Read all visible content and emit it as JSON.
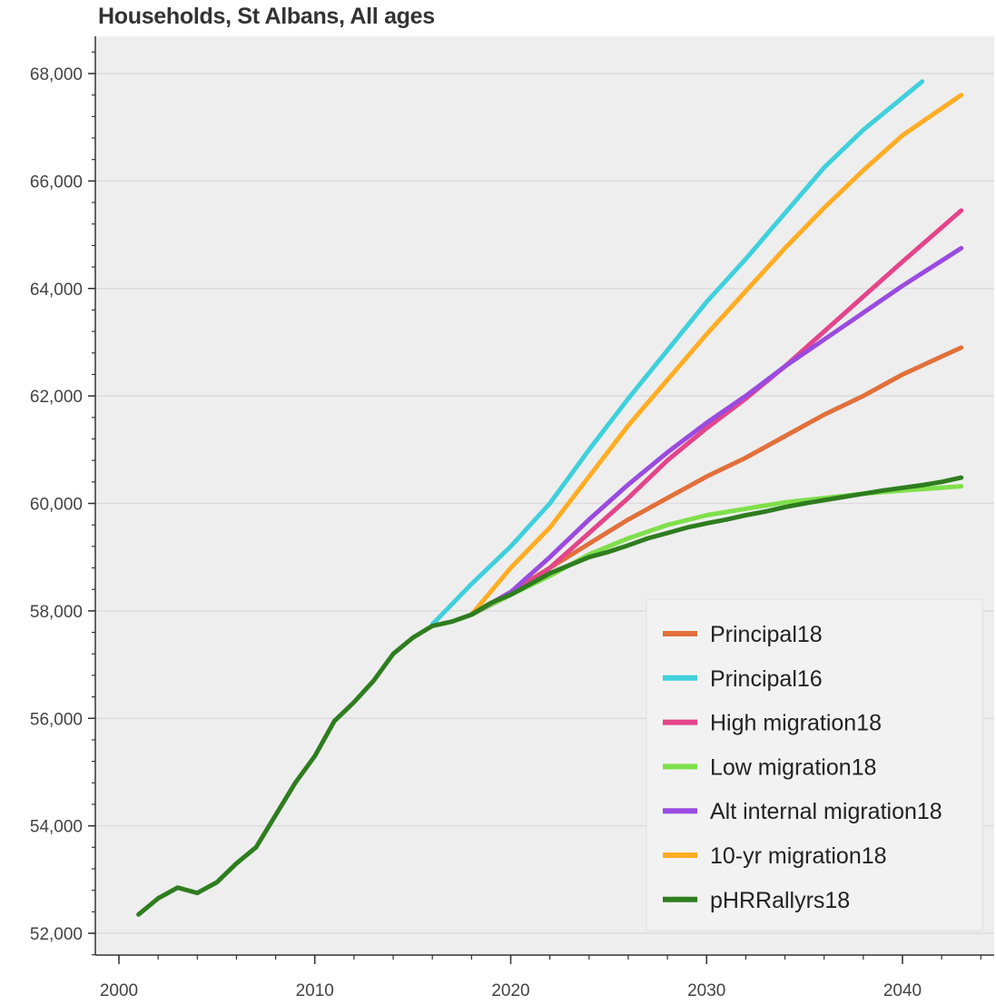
{
  "chart_data": {
    "type": "line",
    "title": "Households, St Albans, All ages",
    "xlabel": "",
    "ylabel": "",
    "xlim": [
      1999,
      2045
    ],
    "ylim": [
      51700,
      68600
    ],
    "x_ticks": [
      2000,
      2010,
      2020,
      2030,
      2040
    ],
    "x_tick_labels": [
      "2000",
      "2010",
      "2020",
      "2030",
      "2040"
    ],
    "y_ticks": [
      52000,
      54000,
      56000,
      58000,
      60000,
      62000,
      64000,
      66000,
      68000
    ],
    "y_tick_labels": [
      "52,000",
      "54,000",
      "56,000",
      "58,000",
      "60,000",
      "62,000",
      "64,000",
      "66,000",
      "68,000"
    ],
    "grid": "horizontal",
    "legend_position": "bottom-right",
    "series": [
      {
        "name": "Principal18",
        "color": "#e2703a",
        "x": [
          2018,
          2020,
          2022,
          2024,
          2026,
          2028,
          2030,
          2032,
          2034,
          2036,
          2038,
          2040,
          2043
        ],
        "y": [
          57930,
          58350,
          58800,
          59250,
          59700,
          60100,
          60500,
          60850,
          61250,
          61650,
          62000,
          62400,
          62900
        ]
      },
      {
        "name": "Principal16",
        "color": "#3fd0dc",
        "x": [
          2016,
          2018,
          2020,
          2022,
          2024,
          2026,
          2028,
          2030,
          2032,
          2034,
          2036,
          2038,
          2041
        ],
        "y": [
          57750,
          58500,
          59200,
          60000,
          61000,
          61950,
          62850,
          63750,
          64550,
          65400,
          66250,
          66950,
          67850
        ]
      },
      {
        "name": "High migration18",
        "color": "#e4458a",
        "x": [
          2018,
          2020,
          2022,
          2024,
          2026,
          2028,
          2030,
          2032,
          2034,
          2036,
          2038,
          2040,
          2043
        ],
        "y": [
          57930,
          58300,
          58800,
          59450,
          60100,
          60800,
          61400,
          61950,
          62550,
          63200,
          63850,
          64500,
          65450
        ]
      },
      {
        "name": "Low migration18",
        "color": "#7fe04a",
        "x": [
          2018,
          2020,
          2022,
          2024,
          2026,
          2028,
          2030,
          2032,
          2034,
          2036,
          2038,
          2040,
          2043
        ],
        "y": [
          57930,
          58300,
          58650,
          59050,
          59350,
          59600,
          59780,
          59900,
          60020,
          60100,
          60180,
          60240,
          60320
        ]
      },
      {
        "name": "Alt internal migration18",
        "color": "#9a4be0",
        "x": [
          2018,
          2020,
          2022,
          2024,
          2026,
          2028,
          2030,
          2032,
          2034,
          2036,
          2038,
          2040,
          2043
        ],
        "y": [
          57930,
          58350,
          59000,
          59700,
          60350,
          60950,
          61500,
          62000,
          62550,
          63050,
          63550,
          64050,
          64750
        ]
      },
      {
        "name": "10-yr migration18",
        "color": "#ffad23",
        "x": [
          2018,
          2020,
          2022,
          2024,
          2026,
          2028,
          2030,
          2032,
          2034,
          2036,
          2038,
          2040,
          2043
        ],
        "y": [
          57930,
          58800,
          59550,
          60500,
          61450,
          62300,
          63150,
          63950,
          64750,
          65500,
          66200,
          66850,
          67600
        ]
      },
      {
        "name": "pHRRallyrs18",
        "color": "#2e7d1f",
        "x": [
          2001,
          2002,
          2003,
          2004,
          2005,
          2006,
          2007,
          2008,
          2009,
          2010,
          2011,
          2012,
          2013,
          2014,
          2015,
          2016,
          2017,
          2018,
          2019,
          2020,
          2021,
          2022,
          2023,
          2024,
          2025,
          2026,
          2027,
          2028,
          2029,
          2030,
          2031,
          2032,
          2033,
          2034,
          2035,
          2036,
          2037,
          2038,
          2039,
          2040,
          2041,
          2042,
          2043
        ],
        "y": [
          52350,
          52650,
          52850,
          52750,
          52950,
          53300,
          53600,
          54200,
          54800,
          55300,
          55950,
          56300,
          56700,
          57200,
          57500,
          57720,
          57800,
          57930,
          58150,
          58300,
          58500,
          58700,
          58850,
          59000,
          59100,
          59220,
          59350,
          59450,
          59550,
          59630,
          59700,
          59780,
          59850,
          59930,
          60000,
          60060,
          60120,
          60180,
          60240,
          60290,
          60340,
          60400,
          60480
        ]
      }
    ]
  }
}
